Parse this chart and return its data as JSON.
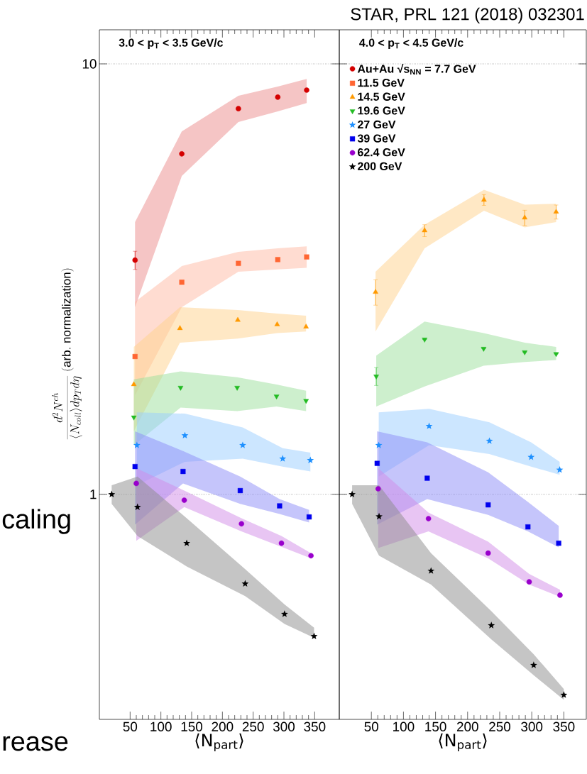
{
  "chart_data": [
    {
      "type": "scatter",
      "title": "3.0 < p$_{T}$ < 3.5 GeV/c",
      "xlabel": "⟨N$_{part}$⟩",
      "ylabel": "\\frac{d^{2}N^{ch}}{\\langle N_{coll}\\rangle dp_{T}d\\eta}\\ \\mathrm{(arb.\\ normalization)}",
      "log": "y",
      "grid": "y",
      "xlim": [
        0,
        390
      ],
      "ylim": [
        0.3,
        12
      ],
      "xticks": [
        50,
        100,
        150,
        200,
        250,
        300,
        350
      ],
      "yticks": [
        1,
        10
      ],
      "annotations": [
        "caling",
        "rease"
      ],
      "series": [
        {
          "color": "#d40000",
          "marker": "circle",
          "x": [
            58,
            134,
            226,
            290,
            337
          ],
          "values": [
            3.5,
            6.18,
            7.87,
            8.37,
            8.69
          ],
          "errors": [
            0.17,
            null,
            null,
            null,
            null
          ],
          "lower": [
            2.72,
            5.49,
            7.33,
            7.76,
            8.11
          ],
          "upper": [
            4.29,
            6.97,
            8.43,
            8.86,
            9.23
          ]
        },
        {
          "color": "#ff6633",
          "marker": "square",
          "x": [
            58,
            134,
            226,
            290,
            337
          ],
          "values": [
            2.09,
            3.11,
            3.44,
            3.51,
            3.56
          ],
          "lower": [
            1.7,
            2.72,
            3.29,
            3.33,
            3.36
          ],
          "upper": [
            2.8,
            3.39,
            3.66,
            3.73,
            3.77
          ]
        },
        {
          "color": "#ff9900",
          "marker": "triangle",
          "x": [
            56,
            131,
            225,
            289,
            336
          ],
          "values": [
            1.8,
            2.43,
            2.54,
            2.48,
            2.45
          ],
          "lower": [
            1.4,
            2.25,
            2.3,
            2.37,
            2.39
          ],
          "upper": [
            2.2,
            2.72,
            2.68,
            2.63,
            2.6
          ]
        },
        {
          "color": "#22bb22",
          "marker": "triangle down",
          "x": [
            56,
            132,
            224,
            288,
            336
          ],
          "values": [
            1.51,
            1.77,
            1.77,
            1.69,
            1.65
          ],
          "lower": [
            1.3,
            1.59,
            1.56,
            1.6,
            1.56
          ],
          "upper": [
            1.85,
            1.93,
            1.87,
            1.8,
            1.74
          ]
        },
        {
          "color": "#1e90ff",
          "marker": "star",
          "x": [
            61,
            139,
            233,
            298,
            343
          ],
          "values": [
            1.3,
            1.37,
            1.3,
            1.21,
            1.2
          ],
          "lower": [
            1.05,
            1.19,
            1.21,
            1.16,
            1.13
          ],
          "upper": [
            1.55,
            1.54,
            1.43,
            1.28,
            1.25
          ]
        },
        {
          "color": "#0000ee",
          "marker": "square",
          "x": [
            58,
            136,
            229,
            293,
            341
          ],
          "values": [
            1.16,
            1.13,
            1.02,
            0.94,
            0.886
          ],
          "lower": [
            0.85,
            1.06,
            0.95,
            0.9,
            0.86
          ],
          "upper": [
            1.4,
            1.26,
            1.1,
            0.975,
            0.92
          ]
        },
        {
          "color": "#9900cc",
          "marker": "circle",
          "x": [
            60,
            138,
            231,
            296,
            344
          ],
          "values": [
            1.06,
            0.969,
            0.854,
            0.77,
            0.72
          ],
          "lower": [
            0.78,
            0.934,
            0.82,
            0.755,
            0.71
          ],
          "upper": [
            1.15,
            1.02,
            0.88,
            0.8,
            0.73
          ]
        },
        {
          "color": "#000000",
          "marker": "star",
          "x": [
            20,
            62,
            142,
            237,
            301,
            349
          ],
          "values": [
            1.0,
            0.934,
            0.77,
            0.62,
            0.527,
            0.468
          ],
          "lower": [
            0.95,
            0.8,
            0.68,
            0.58,
            0.5,
            0.464
          ],
          "upper": [
            1.05,
            1.1,
            0.88,
            0.67,
            0.555,
            0.49
          ]
        }
      ]
    },
    {
      "type": "scatter",
      "title": "4.0 < p$_{T}$ < 4.5 GeV/c",
      "xlabel": "⟨N$_{part}$⟩",
      "log": "y",
      "grid": "y",
      "legend": "top left",
      "tick_labels": "x",
      "xlim": [
        0,
        385
      ],
      "ylim": [
        0.3,
        12
      ],
      "xticks": [
        50,
        100,
        150,
        200,
        250,
        300,
        350
      ],
      "yticks": [
        1,
        10
      ],
      "annotations": [
        "STAR, PRL 121 (2018) 032301"
      ],
      "series": [
        {
          "name": "Au+Au √s$_{NN}$ = 7.7 GeV",
          "color": "#d40000",
          "marker": "circle"
        },
        {
          "name": "11.5 GeV",
          "color": "#ff6633",
          "marker": "square"
        },
        {
          "name": "14.5 GeV",
          "color": "#ff9900",
          "marker": "triangle",
          "x": [
            56.5,
            133,
            225.5,
            289,
            338
          ],
          "values": [
            2.95,
            4.1,
            4.83,
            4.39,
            4.53
          ],
          "errors": [
            0.2,
            0.13,
            0.14,
            0.18,
            0.17
          ],
          "lower": [
            2.39,
            3.73,
            4.56,
            4.17,
            4.29
          ],
          "upper": [
            3.29,
            4.23,
            5.1,
            4.71,
            4.73
          ]
        },
        {
          "name": "19.6 GeV",
          "color": "#22bb22",
          "marker": "triangle down",
          "x": [
            57.6,
            133,
            225,
            289,
            338
          ],
          "values": [
            1.88,
            2.29,
            2.18,
            2.14,
            2.12
          ],
          "errors": [
            0.09,
            null,
            null,
            null,
            null
          ],
          "lower": [
            1.6,
            1.78,
            1.99,
            2.03,
            2.05
          ],
          "upper": [
            2.1,
            2.52,
            2.37,
            2.25,
            2.2
          ]
        },
        {
          "name": "27 GeV",
          "color": "#1e90ff",
          "marker": "star",
          "x": [
            61.5,
            140,
            234,
            299,
            343.5
          ],
          "values": [
            1.3,
            1.44,
            1.33,
            1.22,
            1.14
          ],
          "lower": [
            1.1,
            1.3,
            1.24,
            1.16,
            1.11
          ],
          "upper": [
            1.55,
            1.58,
            1.47,
            1.32,
            1.19
          ]
        },
        {
          "name": "39 GeV",
          "color": "#0000ee",
          "marker": "square",
          "x": [
            59,
            137,
            232,
            294,
            342
          ],
          "values": [
            1.18,
            1.09,
            0.945,
            0.84,
            0.77
          ],
          "lower": [
            0.85,
            0.975,
            0.896,
            0.82,
            0.753
          ],
          "upper": [
            1.4,
            1.32,
            1.125,
            0.96,
            0.845
          ]
        },
        {
          "name": "62.4 GeV",
          "color": "#9900cc",
          "marker": "circle",
          "x": [
            60.6,
            139,
            232,
            296,
            344
          ],
          "values": [
            1.03,
            0.878,
            0.73,
            0.626,
            0.583
          ],
          "lower": [
            0.75,
            0.82,
            0.71,
            0.617,
            0.578
          ],
          "upper": [
            1.15,
            0.907,
            0.776,
            0.653,
            0.6
          ]
        },
        {
          "name": "200 GeV",
          "color": "#000000",
          "marker": "star",
          "x": [
            20,
            62,
            143,
            237,
            303,
            350
          ],
          "values": [
            1.0,
            0.888,
            0.664,
            0.496,
            0.401,
            0.342
          ],
          "lower": [
            0.95,
            0.72,
            0.617,
            0.46,
            0.38,
            0.333
          ],
          "upper": [
            1.05,
            1.05,
            0.73,
            0.535,
            0.425,
            0.353
          ]
        }
      ]
    }
  ]
}
